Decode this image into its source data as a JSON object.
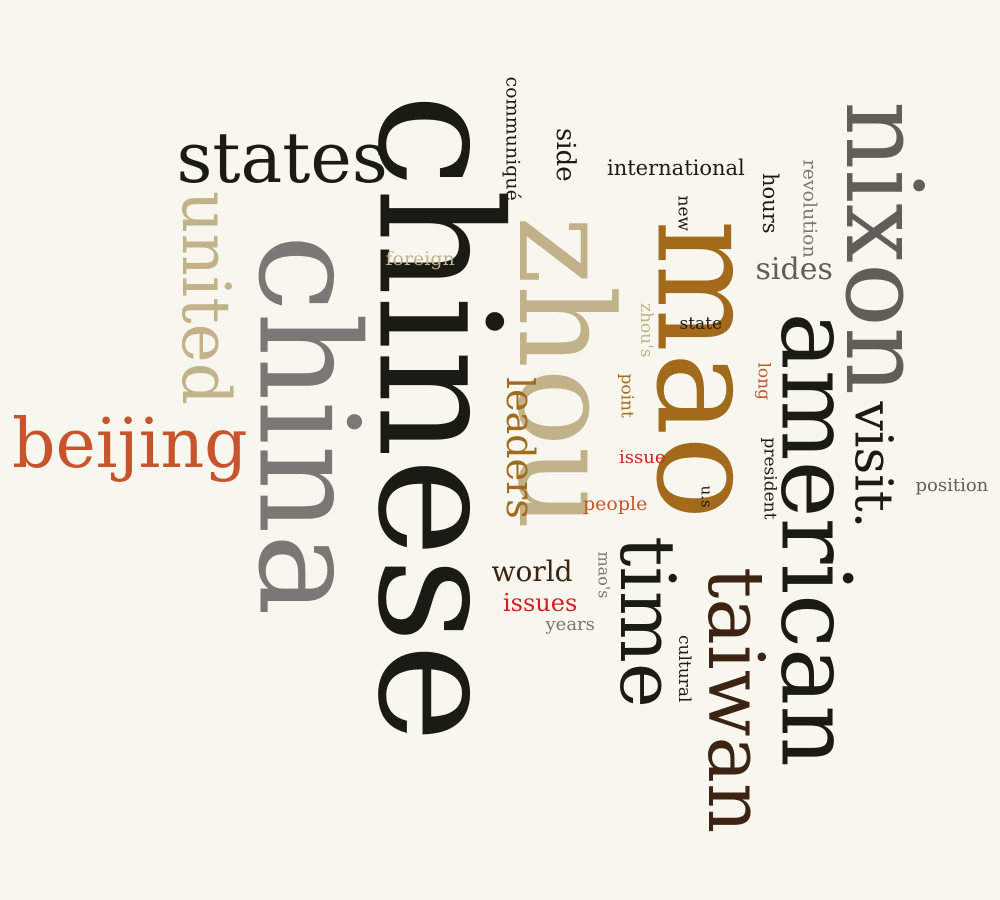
{
  "palette": {
    "background": "#f8f7ef",
    "black": "#1b1b16",
    "gray": "#7a7774",
    "dark_gray": "#5f5e59",
    "tan": "#c1b28a",
    "brown": "#a46a1c",
    "dark_brown": "#3d2412",
    "rust": "#c8542b",
    "red": "#d61d1d"
  },
  "words": {
    "chinese": "chinese",
    "china": "china",
    "zhou": "zhou",
    "mao": "mao",
    "nixon": "nixon",
    "american": "american",
    "states": "states",
    "united": "united",
    "beijing": "beijing",
    "taiwan": "taiwan",
    "time": "time",
    "visit": "visit.",
    "leaders": "leaders",
    "sides": "sides",
    "world": "world",
    "issues": "issues",
    "side": "side",
    "international": "international",
    "hours": "hours",
    "communique": "communiqué",
    "revolution": "revolution",
    "new": "new",
    "foreign": "foreign",
    "state": "state",
    "zhous": "zhou's",
    "point": "point",
    "long": "long",
    "president": "president",
    "issue": "issue",
    "position": "position",
    "us": "u.s",
    "people": "people",
    "maos": "mao's",
    "years": "years",
    "cultural": "cultural"
  }
}
